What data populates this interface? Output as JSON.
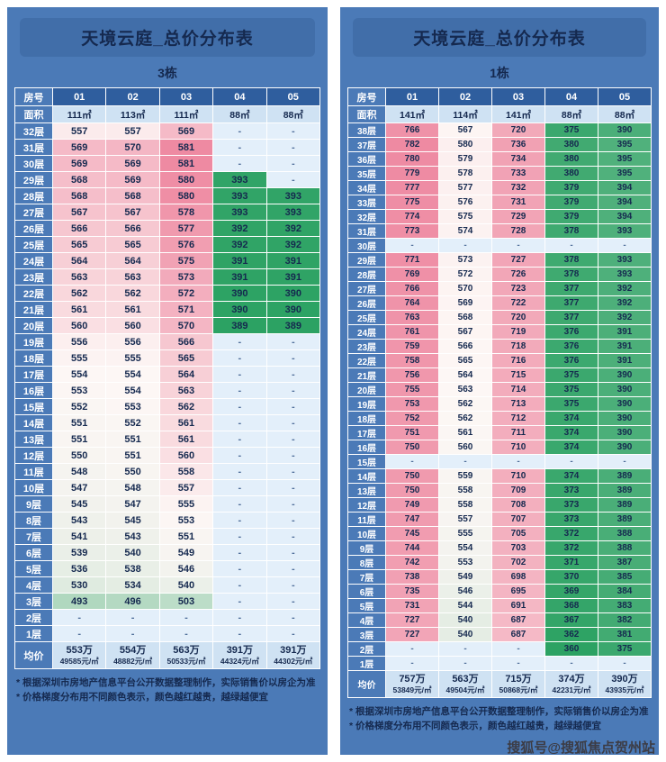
{
  "page": {
    "watermark": "搜狐号@搜狐焦点贺州站"
  },
  "palette": {
    "page_bg": "#ffffff",
    "panel_bg": "#4b7ab7",
    "title_bg": "#416ea9",
    "header_bg": "#2f5e9e",
    "area_row_bg": "#cfe2f3",
    "text_dark": "#15294f",
    "dash_bg": "#e3effa",
    "dash_text": "#51709b",
    "red_high": "#ee8aa2",
    "green_low": "#2ca263",
    "neutral_mid": "#fdf7f5",
    "watermark_color": "#3c3c45"
  },
  "chart_data": [
    {
      "type": "table",
      "title": "天境云庭_总价分布表",
      "subtitle": "3栋",
      "corner": {
        "top": "房号",
        "bottom": "面积"
      },
      "columns": [
        "01",
        "02",
        "03",
        "04",
        "05"
      ],
      "areas": [
        "111㎡",
        "113㎡",
        "111㎡",
        "88㎡",
        "88㎡"
      ],
      "rows": [
        {
          "floor": "32层",
          "values": [
            "557",
            "557",
            "569",
            "-",
            "-"
          ]
        },
        {
          "floor": "31层",
          "values": [
            "569",
            "570",
            "581",
            "-",
            "-"
          ]
        },
        {
          "floor": "30层",
          "values": [
            "569",
            "569",
            "581",
            "-",
            "-"
          ]
        },
        {
          "floor": "29层",
          "values": [
            "568",
            "569",
            "580",
            "393",
            "-"
          ]
        },
        {
          "floor": "28层",
          "values": [
            "568",
            "568",
            "580",
            "393",
            "393"
          ]
        },
        {
          "floor": "27层",
          "values": [
            "567",
            "567",
            "578",
            "393",
            "393"
          ]
        },
        {
          "floor": "26层",
          "values": [
            "566",
            "566",
            "577",
            "392",
            "392"
          ]
        },
        {
          "floor": "25层",
          "values": [
            "565",
            "565",
            "576",
            "392",
            "392"
          ]
        },
        {
          "floor": "24层",
          "values": [
            "564",
            "564",
            "575",
            "391",
            "391"
          ]
        },
        {
          "floor": "23层",
          "values": [
            "563",
            "563",
            "573",
            "391",
            "391"
          ]
        },
        {
          "floor": "22层",
          "values": [
            "562",
            "562",
            "572",
            "390",
            "390"
          ]
        },
        {
          "floor": "21层",
          "values": [
            "561",
            "561",
            "571",
            "390",
            "390"
          ]
        },
        {
          "floor": "20层",
          "values": [
            "560",
            "560",
            "570",
            "389",
            "389"
          ]
        },
        {
          "floor": "19层",
          "values": [
            "556",
            "556",
            "566",
            "-",
            "-"
          ]
        },
        {
          "floor": "18层",
          "values": [
            "555",
            "555",
            "565",
            "-",
            "-"
          ]
        },
        {
          "floor": "17层",
          "values": [
            "554",
            "554",
            "564",
            "-",
            "-"
          ]
        },
        {
          "floor": "16层",
          "values": [
            "553",
            "554",
            "563",
            "-",
            "-"
          ]
        },
        {
          "floor": "15层",
          "values": [
            "552",
            "553",
            "562",
            "-",
            "-"
          ]
        },
        {
          "floor": "14层",
          "values": [
            "551",
            "552",
            "561",
            "-",
            "-"
          ]
        },
        {
          "floor": "13层",
          "values": [
            "551",
            "551",
            "561",
            "-",
            "-"
          ]
        },
        {
          "floor": "12层",
          "values": [
            "550",
            "551",
            "560",
            "-",
            "-"
          ]
        },
        {
          "floor": "11层",
          "values": [
            "548",
            "550",
            "558",
            "-",
            "-"
          ]
        },
        {
          "floor": "10层",
          "values": [
            "547",
            "548",
            "557",
            "-",
            "-"
          ]
        },
        {
          "floor": "9层",
          "values": [
            "545",
            "547",
            "555",
            "-",
            "-"
          ]
        },
        {
          "floor": "8层",
          "values": [
            "543",
            "545",
            "553",
            "-",
            "-"
          ]
        },
        {
          "floor": "7层",
          "values": [
            "541",
            "543",
            "551",
            "-",
            "-"
          ]
        },
        {
          "floor": "6层",
          "values": [
            "539",
            "540",
            "549",
            "-",
            "-"
          ]
        },
        {
          "floor": "5层",
          "values": [
            "536",
            "538",
            "546",
            "-",
            "-"
          ]
        },
        {
          "floor": "4层",
          "values": [
            "530",
            "534",
            "540",
            "-",
            "-"
          ]
        },
        {
          "floor": "3层",
          "values": [
            "493",
            "496",
            "503",
            "-",
            "-"
          ]
        },
        {
          "floor": "2层",
          "values": [
            "-",
            "-",
            "-",
            "-",
            "-"
          ]
        },
        {
          "floor": "1层",
          "values": [
            "-",
            "-",
            "-",
            "-",
            "-"
          ]
        }
      ],
      "avg_label": "均价",
      "averages": [
        {
          "wan": "553万",
          "per_sqm": "49585元/㎡"
        },
        {
          "wan": "554万",
          "per_sqm": "48882元/㎡"
        },
        {
          "wan": "563万",
          "per_sqm": "50533元/㎡"
        },
        {
          "wan": "391万",
          "per_sqm": "44324元/㎡"
        },
        {
          "wan": "391万",
          "per_sqm": "44302元/㎡"
        }
      ],
      "notes": [
        "* 根据深圳市房地产信息平台公开数据整理制作，实际销售价以房企为准",
        "* 价格梯度分布用不同颜色表示，颜色越红越贵，越绿越便宜"
      ]
    },
    {
      "type": "table",
      "title": "天境云庭_总价分布表",
      "subtitle": "1栋",
      "corner": {
        "top": "房号",
        "bottom": "面积"
      },
      "columns": [
        "01",
        "02",
        "03",
        "04",
        "05"
      ],
      "areas": [
        "141㎡",
        "114㎡",
        "141㎡",
        "88㎡",
        "88㎡"
      ],
      "rows": [
        {
          "floor": "38层",
          "values": [
            "766",
            "567",
            "720",
            "375",
            "390"
          ]
        },
        {
          "floor": "37层",
          "values": [
            "782",
            "580",
            "736",
            "380",
            "395"
          ]
        },
        {
          "floor": "36层",
          "values": [
            "780",
            "579",
            "734",
            "380",
            "395"
          ]
        },
        {
          "floor": "35层",
          "values": [
            "779",
            "578",
            "733",
            "380",
            "395"
          ]
        },
        {
          "floor": "34层",
          "values": [
            "777",
            "577",
            "732",
            "379",
            "394"
          ]
        },
        {
          "floor": "33层",
          "values": [
            "775",
            "576",
            "731",
            "379",
            "394"
          ]
        },
        {
          "floor": "32层",
          "values": [
            "774",
            "575",
            "729",
            "379",
            "394"
          ]
        },
        {
          "floor": "31层",
          "values": [
            "773",
            "574",
            "728",
            "378",
            "393"
          ]
        },
        {
          "floor": "30层",
          "values": [
            "-",
            "-",
            "-",
            "-",
            "-"
          ]
        },
        {
          "floor": "29层",
          "values": [
            "771",
            "573",
            "727",
            "378",
            "393"
          ]
        },
        {
          "floor": "28层",
          "values": [
            "769",
            "572",
            "726",
            "378",
            "393"
          ]
        },
        {
          "floor": "27层",
          "values": [
            "766",
            "570",
            "723",
            "377",
            "392"
          ]
        },
        {
          "floor": "26层",
          "values": [
            "764",
            "569",
            "722",
            "377",
            "392"
          ]
        },
        {
          "floor": "25层",
          "values": [
            "763",
            "568",
            "720",
            "377",
            "392"
          ]
        },
        {
          "floor": "24层",
          "values": [
            "761",
            "567",
            "719",
            "376",
            "391"
          ]
        },
        {
          "floor": "23层",
          "values": [
            "759",
            "566",
            "718",
            "376",
            "391"
          ]
        },
        {
          "floor": "22层",
          "values": [
            "758",
            "565",
            "716",
            "376",
            "391"
          ]
        },
        {
          "floor": "21层",
          "values": [
            "756",
            "564",
            "715",
            "375",
            "390"
          ]
        },
        {
          "floor": "20层",
          "values": [
            "755",
            "563",
            "714",
            "375",
            "390"
          ]
        },
        {
          "floor": "19层",
          "values": [
            "753",
            "562",
            "713",
            "375",
            "390"
          ]
        },
        {
          "floor": "18层",
          "values": [
            "752",
            "562",
            "712",
            "374",
            "390"
          ]
        },
        {
          "floor": "17层",
          "values": [
            "751",
            "561",
            "711",
            "374",
            "390"
          ]
        },
        {
          "floor": "16层",
          "values": [
            "750",
            "560",
            "710",
            "374",
            "390"
          ]
        },
        {
          "floor": "15层",
          "values": [
            "-",
            "-",
            "-",
            "-",
            "-"
          ]
        },
        {
          "floor": "14层",
          "values": [
            "750",
            "559",
            "710",
            "374",
            "389"
          ]
        },
        {
          "floor": "13层",
          "values": [
            "750",
            "558",
            "709",
            "373",
            "389"
          ]
        },
        {
          "floor": "12层",
          "values": [
            "749",
            "558",
            "708",
            "373",
            "389"
          ]
        },
        {
          "floor": "11层",
          "values": [
            "747",
            "557",
            "707",
            "373",
            "389"
          ]
        },
        {
          "floor": "10层",
          "values": [
            "745",
            "555",
            "705",
            "372",
            "388"
          ]
        },
        {
          "floor": "9层",
          "values": [
            "744",
            "554",
            "703",
            "372",
            "388"
          ]
        },
        {
          "floor": "8层",
          "values": [
            "742",
            "553",
            "702",
            "371",
            "387"
          ]
        },
        {
          "floor": "7层",
          "values": [
            "738",
            "549",
            "698",
            "370",
            "385"
          ]
        },
        {
          "floor": "6层",
          "values": [
            "735",
            "546",
            "695",
            "369",
            "384"
          ]
        },
        {
          "floor": "5层",
          "values": [
            "731",
            "544",
            "691",
            "368",
            "383"
          ]
        },
        {
          "floor": "4层",
          "values": [
            "727",
            "540",
            "687",
            "367",
            "382"
          ]
        },
        {
          "floor": "3层",
          "values": [
            "727",
            "540",
            "687",
            "362",
            "381"
          ]
        },
        {
          "floor": "2层",
          "values": [
            "-",
            "-",
            "-",
            "360",
            "375"
          ]
        },
        {
          "floor": "1层",
          "values": [
            "-",
            "-",
            "-",
            "-",
            "-"
          ]
        }
      ],
      "avg_label": "均价",
      "averages": [
        {
          "wan": "757万",
          "per_sqm": "53849元/㎡"
        },
        {
          "wan": "563万",
          "per_sqm": "49504元/㎡"
        },
        {
          "wan": "715万",
          "per_sqm": "50868元/㎡"
        },
        {
          "wan": "374万",
          "per_sqm": "42231元/㎡"
        },
        {
          "wan": "390万",
          "per_sqm": "43935元/㎡"
        }
      ],
      "notes": [
        "* 根据深圳市房地产信息平台公开数据整理制作，实际销售价以房企为准",
        "* 价格梯度分布用不同颜色表示，颜色越红越贵，越绿越便宜"
      ]
    }
  ]
}
